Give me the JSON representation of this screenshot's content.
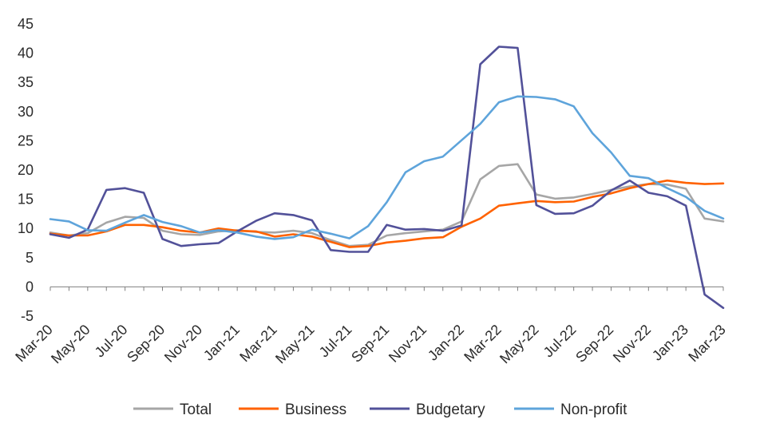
{
  "chart_data": {
    "type": "line",
    "title": "",
    "xlabel": "",
    "ylabel": "",
    "ylim": [
      -5,
      45
    ],
    "yticks": [
      -5,
      0,
      5,
      10,
      15,
      20,
      25,
      30,
      35,
      40,
      45
    ],
    "grid": false,
    "legend_position": "bottom",
    "x": [
      "Mar-20",
      "Apr-20",
      "May-20",
      "Jun-20",
      "Jul-20",
      "Aug-20",
      "Sep-20",
      "Oct-20",
      "Nov-20",
      "Dec-20",
      "Jan-21",
      "Feb-21",
      "Mar-21",
      "Apr-21",
      "May-21",
      "Jun-21",
      "Jul-21",
      "Aug-21",
      "Sep-21",
      "Oct-21",
      "Nov-21",
      "Dec-21",
      "Jan-22",
      "Feb-22",
      "Mar-22",
      "Apr-22",
      "May-22",
      "Jun-22",
      "Jul-22",
      "Aug-22",
      "Sep-22",
      "Oct-22",
      "Nov-22",
      "Dec-22",
      "Jan-23",
      "Feb-23",
      "Mar-23"
    ],
    "xtick_labels": [
      "Mar-20",
      "May-20",
      "Jul-20",
      "Sep-20",
      "Nov-20",
      "Jan-21",
      "Mar-21",
      "May-21",
      "Jul-21",
      "Sep-21",
      "Nov-21",
      "Jan-22",
      "Mar-22",
      "May-22",
      "Jul-22",
      "Sep-22",
      "Nov-22",
      "Jan-23",
      "Mar-23"
    ],
    "series": [
      {
        "name": "Total",
        "color": "#a6a6a6",
        "values": [
          9.3,
          8.8,
          9.2,
          11.0,
          12.0,
          11.8,
          9.6,
          9.0,
          8.9,
          9.5,
          9.7,
          9.4,
          9.3,
          9.6,
          9.2,
          8.0,
          7.0,
          7.2,
          8.8,
          9.2,
          9.5,
          9.8,
          11.2,
          18.4,
          20.7,
          21.0,
          15.8,
          15.1,
          15.3,
          15.9,
          16.6,
          17.2,
          17.6,
          17.5,
          16.8,
          11.7,
          11.2
        ]
      },
      {
        "name": "Business",
        "color": "#ff6200",
        "values": [
          9.1,
          8.8,
          8.8,
          9.5,
          10.6,
          10.6,
          10.2,
          9.6,
          9.3,
          10.0,
          9.6,
          9.5,
          8.6,
          9.0,
          8.6,
          7.7,
          6.8,
          7.0,
          7.6,
          7.9,
          8.3,
          8.5,
          10.3,
          11.7,
          13.9,
          14.3,
          14.7,
          14.5,
          14.6,
          15.4,
          16.0,
          16.9,
          17.6,
          18.2,
          17.8,
          17.6,
          17.7
        ]
      },
      {
        "name": "Budgetary",
        "color": "#525199",
        "values": [
          9.0,
          8.4,
          9.8,
          16.6,
          16.9,
          16.1,
          8.2,
          7.0,
          7.3,
          7.5,
          9.5,
          11.3,
          12.6,
          12.3,
          11.4,
          6.3,
          6.0,
          6.0,
          10.6,
          9.8,
          9.9,
          9.6,
          10.5,
          38.1,
          41.1,
          40.9,
          14.0,
          12.5,
          12.6,
          13.9,
          16.5,
          18.2,
          16.1,
          15.5,
          13.9,
          -1.3,
          -3.6
        ]
      },
      {
        "name": "Non-profit",
        "color": "#5ea4db",
        "values": [
          11.6,
          11.2,
          9.7,
          9.6,
          11.0,
          12.3,
          11.1,
          10.4,
          9.3,
          9.7,
          9.3,
          8.6,
          8.2,
          8.5,
          9.8,
          9.1,
          8.3,
          10.4,
          14.5,
          19.6,
          21.5,
          22.3,
          25.1,
          27.9,
          31.6,
          32.6,
          32.5,
          32.1,
          30.9,
          26.3,
          23.0,
          19.0,
          18.6,
          16.9,
          15.4,
          13.0,
          11.7
        ]
      }
    ]
  }
}
